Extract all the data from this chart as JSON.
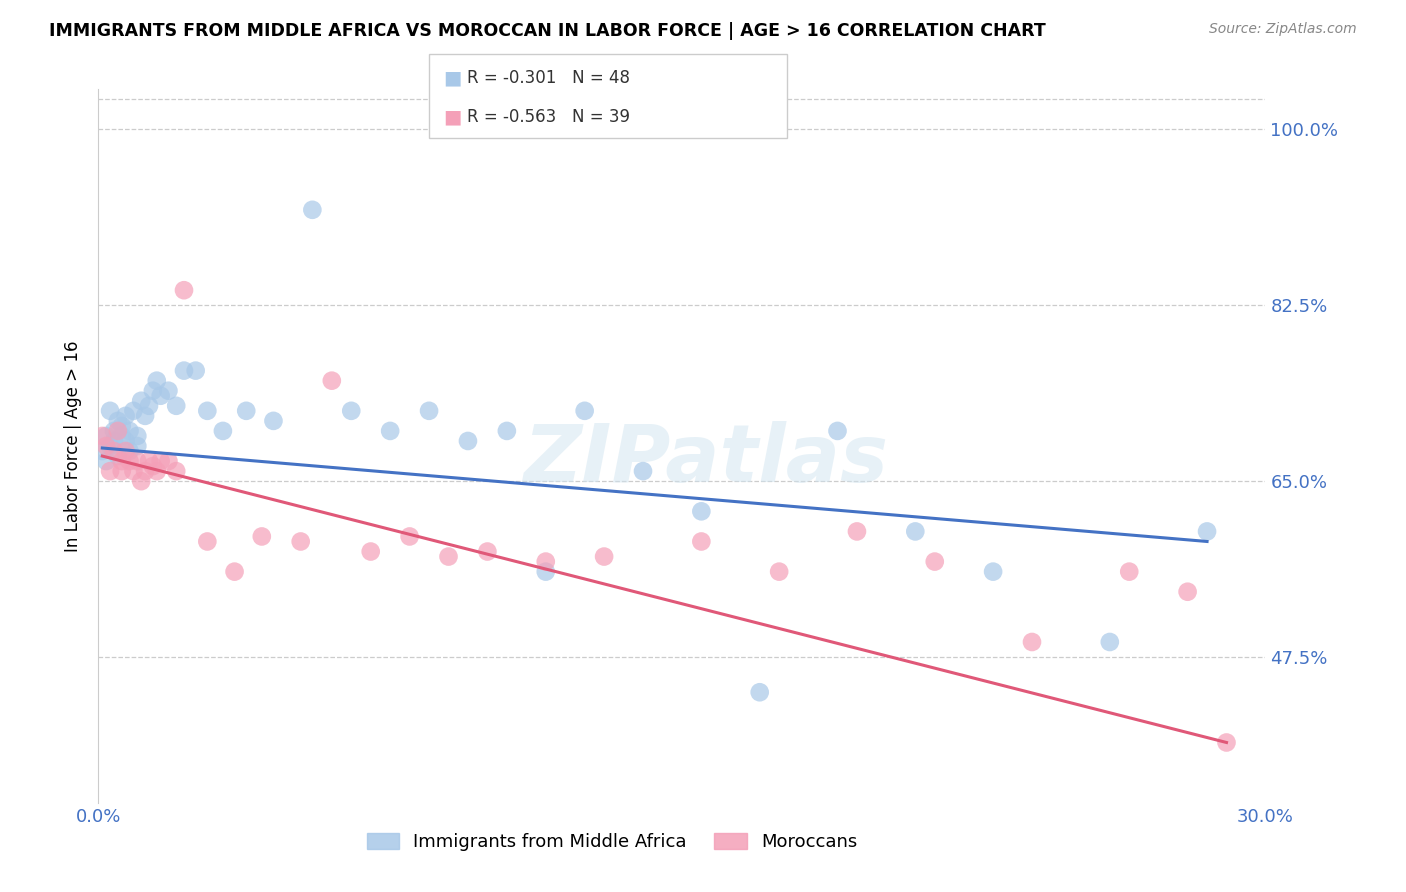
{
  "title": "IMMIGRANTS FROM MIDDLE AFRICA VS MOROCCAN IN LABOR FORCE | AGE > 16 CORRELATION CHART",
  "source": "Source: ZipAtlas.com",
  "ylabel": "In Labor Force | Age > 16",
  "xlim": [
    0.0,
    0.3
  ],
  "ylim": [
    0.33,
    1.04
  ],
  "yticks": [
    0.475,
    0.65,
    0.825,
    1.0
  ],
  "ytick_labels": [
    "47.5%",
    "65.0%",
    "82.5%",
    "100.0%"
  ],
  "xticks": [
    0.0,
    0.05,
    0.1,
    0.15,
    0.2,
    0.25,
    0.3
  ],
  "blue_label": "Immigrants from Middle Africa",
  "pink_label": "Moroccans",
  "blue_R": -0.301,
  "blue_N": 48,
  "pink_R": -0.563,
  "pink_N": 39,
  "blue_color": "#a8c8e8",
  "pink_color": "#f4a0b8",
  "blue_line_color": "#4472C4",
  "pink_line_color": "#e05878",
  "watermark_text": "ZIPatlas",
  "blue_x": [
    0.001,
    0.002,
    0.002,
    0.003,
    0.003,
    0.004,
    0.004,
    0.005,
    0.005,
    0.006,
    0.006,
    0.007,
    0.007,
    0.008,
    0.008,
    0.009,
    0.01,
    0.01,
    0.011,
    0.012,
    0.013,
    0.014,
    0.015,
    0.016,
    0.018,
    0.02,
    0.022,
    0.025,
    0.028,
    0.032,
    0.038,
    0.045,
    0.055,
    0.065,
    0.075,
    0.085,
    0.095,
    0.105,
    0.115,
    0.125,
    0.14,
    0.155,
    0.17,
    0.19,
    0.21,
    0.23,
    0.26,
    0.285
  ],
  "blue_y": [
    0.68,
    0.695,
    0.67,
    0.685,
    0.72,
    0.69,
    0.7,
    0.71,
    0.675,
    0.695,
    0.705,
    0.69,
    0.715,
    0.68,
    0.7,
    0.72,
    0.695,
    0.685,
    0.73,
    0.715,
    0.725,
    0.74,
    0.75,
    0.735,
    0.74,
    0.725,
    0.76,
    0.76,
    0.72,
    0.7,
    0.72,
    0.71,
    0.92,
    0.72,
    0.7,
    0.72,
    0.69,
    0.7,
    0.56,
    0.72,
    0.66,
    0.62,
    0.44,
    0.7,
    0.6,
    0.56,
    0.49,
    0.6
  ],
  "pink_x": [
    0.001,
    0.002,
    0.003,
    0.004,
    0.005,
    0.006,
    0.006,
    0.007,
    0.008,
    0.009,
    0.01,
    0.011,
    0.012,
    0.013,
    0.014,
    0.015,
    0.016,
    0.018,
    0.02,
    0.022,
    0.028,
    0.035,
    0.042,
    0.052,
    0.06,
    0.07,
    0.08,
    0.09,
    0.1,
    0.115,
    0.13,
    0.155,
    0.175,
    0.195,
    0.215,
    0.24,
    0.265,
    0.28,
    0.29
  ],
  "pink_y": [
    0.695,
    0.685,
    0.66,
    0.68,
    0.7,
    0.67,
    0.66,
    0.68,
    0.67,
    0.66,
    0.67,
    0.65,
    0.66,
    0.67,
    0.665,
    0.66,
    0.67,
    0.67,
    0.66,
    0.84,
    0.59,
    0.56,
    0.595,
    0.59,
    0.75,
    0.58,
    0.595,
    0.575,
    0.58,
    0.57,
    0.575,
    0.59,
    0.56,
    0.6,
    0.57,
    0.49,
    0.56,
    0.54,
    0.39
  ]
}
